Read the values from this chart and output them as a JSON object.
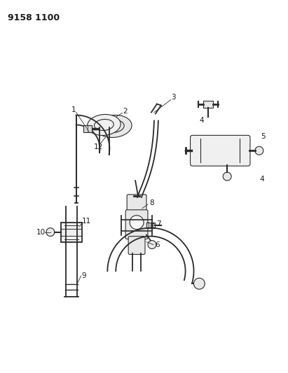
{
  "title": "9158 1100",
  "title_fontsize": 9,
  "bg_color": "#ffffff",
  "line_color": "#2a2a2a",
  "label_color": "#1a1a1a",
  "figsize": [
    4.11,
    5.33
  ],
  "dpi": 100
}
